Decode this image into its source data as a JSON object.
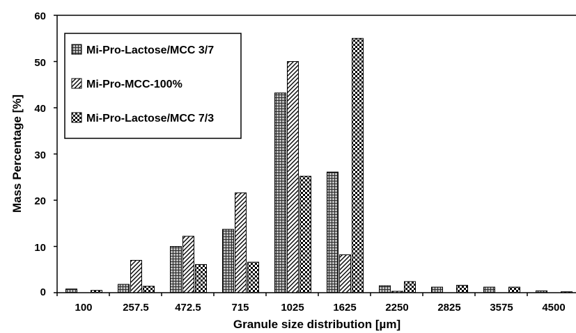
{
  "chart_data": {
    "type": "bar",
    "title": "",
    "xlabel": "Granule size distribution [µm]",
    "ylabel": "Mass Percentage [%]",
    "ylim": [
      0,
      60
    ],
    "yticks": [
      "0",
      "10",
      "20",
      "30",
      "40",
      "50",
      "60"
    ],
    "grid": false,
    "legend_position": "top-left",
    "categories": [
      "100",
      "257.5",
      "472.5",
      "715",
      "1025",
      "1625",
      "2250",
      "2825",
      "3575",
      "4500"
    ],
    "series": [
      {
        "name": "Mi-Pro-Lactose/MCC 3/7",
        "pattern": "dense-grid",
        "values": [
          0.8,
          1.8,
          10.0,
          13.7,
          43.2,
          26.1,
          1.5,
          1.2,
          1.2,
          0.4
        ]
      },
      {
        "name": "Mi-Pro-MCC-100%",
        "pattern": "diagonal-hatch",
        "values": [
          0.0,
          7.0,
          12.2,
          21.6,
          50.0,
          8.2,
          0.3,
          0.0,
          0.0,
          0.0
        ]
      },
      {
        "name": "Mi-Pro-Lactose/MCC 7/3",
        "pattern": "checkerboard",
        "values": [
          0.5,
          1.4,
          6.1,
          6.6,
          25.2,
          55.0,
          2.4,
          1.6,
          1.2,
          0.2
        ]
      }
    ]
  }
}
